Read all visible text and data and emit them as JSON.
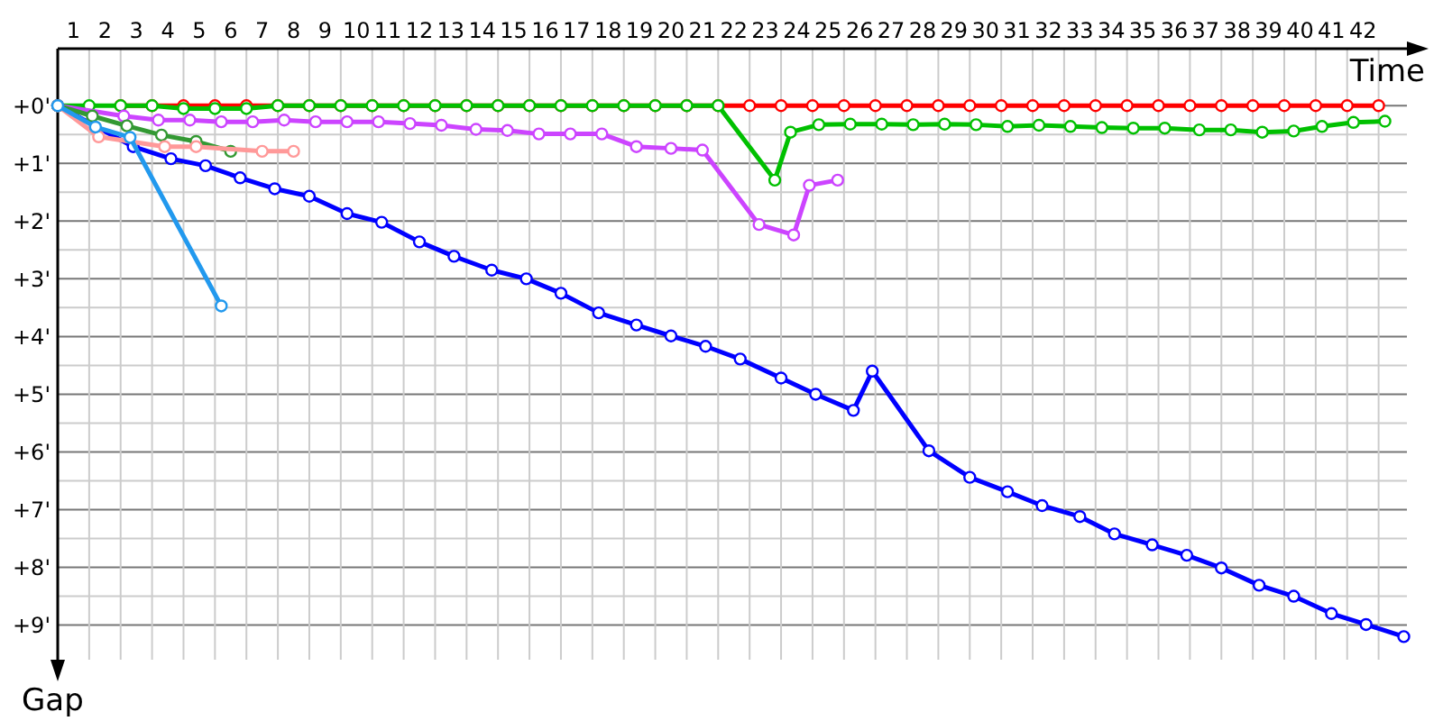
{
  "chart_data": {
    "type": "line",
    "xlabel": "Time",
    "ylabel": "Gap",
    "grid": true,
    "marker": "circle",
    "line_style": "solid",
    "xlim": [
      0.5,
      43.4
    ],
    "ylim": [
      9.6,
      -1.05
    ],
    "xticks": [
      1,
      2,
      3,
      4,
      5,
      6,
      7,
      8,
      9,
      10,
      11,
      12,
      13,
      14,
      15,
      16,
      17,
      18,
      19,
      20,
      21,
      22,
      23,
      24,
      25,
      26,
      27,
      28,
      29,
      30,
      31,
      32,
      33,
      34,
      35,
      36,
      37,
      38,
      39,
      40,
      41,
      42,
      {
        "value": 1.5,
        "label": null
      },
      {
        "value": 2.5,
        "label": null
      },
      {
        "value": 3.5,
        "label": null
      },
      {
        "value": 4.5,
        "label": null
      },
      {
        "value": 5.5,
        "label": null
      },
      {
        "value": 6.5,
        "label": null
      },
      {
        "value": 7.5,
        "label": null
      },
      {
        "value": 8.5,
        "label": null
      },
      {
        "value": 9.5,
        "label": null
      },
      {
        "value": 10.5,
        "label": null
      },
      {
        "value": 11.5,
        "label": null
      },
      {
        "value": 12.5,
        "label": null
      },
      {
        "value": 13.5,
        "label": null
      },
      {
        "value": 14.5,
        "label": null
      },
      {
        "value": 15.5,
        "label": null
      },
      {
        "value": 16.5,
        "label": null
      },
      {
        "value": 17.5,
        "label": null
      },
      {
        "value": 18.5,
        "label": null
      },
      {
        "value": 19.5,
        "label": null
      },
      {
        "value": 20.5,
        "label": null
      },
      {
        "value": 21.5,
        "label": null
      },
      {
        "value": 22.5,
        "label": null
      },
      {
        "value": 23.5,
        "label": null
      },
      {
        "value": 24.5,
        "label": null
      },
      {
        "value": 25.5,
        "label": null
      },
      {
        "value": 26.5,
        "label": null
      },
      {
        "value": 27.5,
        "label": null
      },
      {
        "value": 28.5,
        "label": null
      },
      {
        "value": 29.5,
        "label": null
      },
      {
        "value": 30.5,
        "label": null
      },
      {
        "value": 31.5,
        "label": null
      },
      {
        "value": 32.5,
        "label": null
      },
      {
        "value": 33.5,
        "label": null
      },
      {
        "value": 34.5,
        "label": null
      },
      {
        "value": 35.5,
        "label": null
      },
      {
        "value": 36.5,
        "label": null
      },
      {
        "value": 37.5,
        "label": null
      },
      {
        "value": 38.5,
        "label": null
      },
      {
        "value": 39.5,
        "label": null
      },
      {
        "value": 40.5,
        "label": null
      },
      {
        "value": 41.5,
        "label": null
      },
      {
        "value": 42.5,
        "label": null
      }
    ],
    "yticks": [
      {
        "value": 0,
        "label": "+0'"
      },
      {
        "value": 0.5,
        "label": null
      },
      {
        "value": 1,
        "label": "+1'"
      },
      {
        "value": 1.5,
        "label": null
      },
      {
        "value": 2,
        "label": "+2'"
      },
      {
        "value": 2.5,
        "label": null
      },
      {
        "value": 3,
        "label": "+3'"
      },
      {
        "value": 3.5,
        "label": null
      },
      {
        "value": 4,
        "label": "+4'"
      },
      {
        "value": 4.5,
        "label": null
      },
      {
        "value": 5,
        "label": "+5'"
      },
      {
        "value": 5.5,
        "label": null
      },
      {
        "value": 6,
        "label": "+6'"
      },
      {
        "value": 6.5,
        "label": null
      },
      {
        "value": 7,
        "label": "+7'"
      },
      {
        "value": 7.5,
        "label": null
      },
      {
        "value": 8,
        "label": "+8'"
      },
      {
        "value": 8.5,
        "label": null
      },
      {
        "value": 9,
        "label": "+9'"
      }
    ],
    "series": [
      {
        "color": "#ff0000",
        "x": [
          2.5,
          3.5,
          4.5,
          5.5,
          6.5,
          7.5,
          8.5,
          9.5,
          10.5,
          11.5,
          12.5,
          13.5,
          14.5,
          15.5,
          16.5,
          17.5,
          18.5,
          19.5,
          20.5,
          21.5,
          22.5,
          23.5,
          24.5,
          25.5,
          26.5,
          27.5,
          28.5,
          29.5,
          30.5,
          31.5,
          32.5,
          33.5,
          34.5,
          35.5,
          36.5,
          37.5,
          38.5,
          39.5,
          40.5,
          41.5,
          42.5
        ],
        "values": [
          0,
          0,
          0,
          0,
          0,
          0,
          0,
          0,
          0,
          0,
          0,
          0,
          0,
          0,
          0,
          0,
          0,
          0,
          0,
          0,
          0,
          0,
          0,
          0,
          0,
          0,
          0,
          0,
          0,
          0,
          0,
          0,
          0,
          0,
          0,
          0,
          0,
          0,
          0,
          0,
          0
        ]
      },
      {
        "color": "#00c000",
        "x": [
          0.5,
          1.5,
          2.5,
          3.5,
          4.5,
          5.5,
          6.5,
          7.5,
          8.5,
          9.5,
          10.5,
          11.5,
          12.5,
          13.5,
          14.5,
          15.5,
          16.5,
          17.5,
          18.5,
          19.5,
          20.5,
          21.5,
          23.3,
          23.8,
          24.7,
          25.7,
          26.7,
          27.7,
          28.7,
          29.7,
          30.7,
          31.7,
          32.7,
          33.7,
          34.7,
          35.7,
          36.8,
          37.8,
          38.8,
          39.8,
          40.7,
          41.7,
          42.7
        ],
        "values": [
          0,
          0,
          0,
          0,
          0.05,
          0.05,
          0.05,
          0,
          0,
          0,
          0,
          0,
          0,
          0,
          0,
          0,
          0,
          0,
          0,
          0,
          0,
          0,
          1.29,
          0.46,
          0.33,
          0.32,
          0.32,
          0.33,
          0.32,
          0.33,
          0.36,
          0.34,
          0.36,
          0.38,
          0.39,
          0.39,
          0.42,
          0.42,
          0.46,
          0.44,
          0.36,
          0.29,
          0.27
        ]
      },
      {
        "color": "#cc44ff",
        "x": [
          0.5,
          1.6,
          2.6,
          3.7,
          4.7,
          5.7,
          6.7,
          7.7,
          8.7,
          9.7,
          10.7,
          11.7,
          12.7,
          13.8,
          14.8,
          15.8,
          16.8,
          17.8,
          18.9,
          20.0,
          21.0,
          22.8,
          23.9,
          24.4,
          25.3
        ],
        "values": [
          0,
          null,
          0.18,
          0.25,
          0.25,
          0.28,
          0.28,
          0.25,
          0.28,
          0.28,
          0.28,
          0.31,
          0.34,
          0.41,
          0.43,
          0.49,
          0.49,
          0.49,
          0.71,
          0.74,
          0.77,
          2.06,
          2.24,
          1.38,
          1.29
        ]
      },
      {
        "color": "#0000ff",
        "x": [
          0.5,
          1.8,
          2.9,
          4.1,
          5.2,
          6.3,
          7.4,
          8.5,
          9.7,
          10.8,
          12.0,
          13.1,
          14.3,
          15.4,
          16.5,
          17.7,
          18.9,
          20.0,
          21.1,
          22.2,
          23.5,
          24.6,
          25.8,
          26.4,
          28.2,
          29.5,
          30.7,
          31.8,
          33.0,
          34.1,
          35.3,
          36.4,
          37.5,
          38.7,
          39.8,
          41.0,
          42.1,
          43.3
        ],
        "values": [
          0,
          null,
          0.71,
          0.92,
          1.04,
          1.25,
          1.44,
          1.57,
          1.87,
          2.02,
          2.36,
          2.61,
          2.85,
          3.0,
          3.25,
          3.59,
          3.8,
          3.99,
          4.17,
          4.39,
          4.72,
          5.0,
          5.28,
          4.6,
          5.98,
          6.44,
          6.69,
          6.93,
          7.12,
          7.42,
          7.61,
          7.79,
          8.01,
          8.31,
          8.5,
          8.8,
          8.99,
          9.2
        ]
      },
      {
        "color": "#339933",
        "x": [
          0.5,
          1.6,
          2.7,
          3.8,
          4.9,
          6.0
        ],
        "values": [
          0,
          0.18,
          0.35,
          0.51,
          0.62,
          0.79
        ]
      },
      {
        "color": "#ff9999",
        "x": [
          0.5,
          1.8,
          2.9,
          3.9,
          4.9,
          6.0,
          7.0,
          8.0
        ],
        "values": [
          0,
          0.54,
          null,
          0.71,
          0.71,
          null,
          0.79,
          0.79
        ]
      },
      {
        "color": "#2299ee",
        "x": [
          0.5,
          1.7,
          2.8,
          5.7
        ],
        "values": [
          0,
          0.37,
          0.55,
          3.47
        ]
      }
    ]
  }
}
